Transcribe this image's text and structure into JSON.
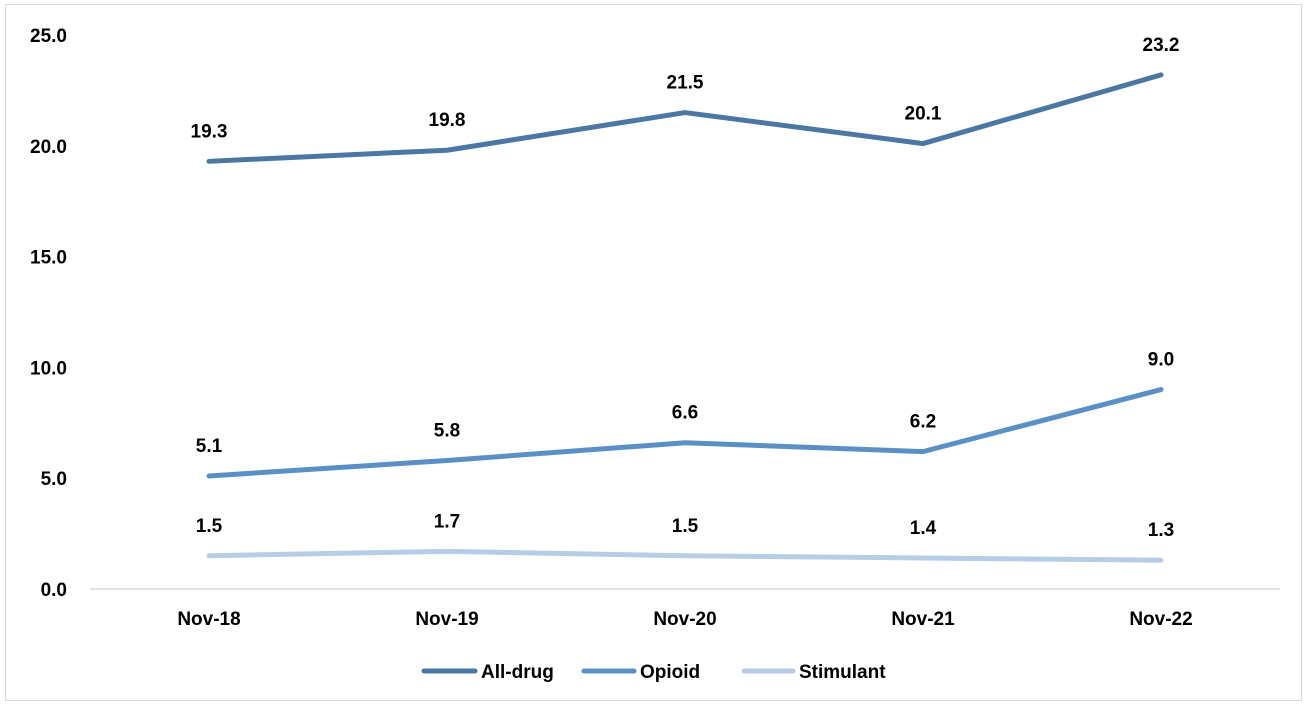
{
  "chart_data": {
    "type": "line",
    "title": "",
    "xlabel": "",
    "ylabel": "",
    "categories": [
      "Nov-18",
      "Nov-19",
      "Nov-20",
      "Nov-21",
      "Nov-22"
    ],
    "ylim": [
      0,
      25
    ],
    "yticks": [
      "0.0",
      "5.0",
      "10.0",
      "15.0",
      "20.0",
      "25.0"
    ],
    "grid": false,
    "legend_position": "bottom",
    "series": [
      {
        "name": "All-drug",
        "color": "#4a77a3",
        "values": [
          19.3,
          19.8,
          21.5,
          20.1,
          23.2
        ],
        "labels": [
          "19.3",
          "19.8",
          "21.5",
          "20.1",
          "23.2"
        ]
      },
      {
        "name": "Opioid",
        "color": "#5a90c6",
        "values": [
          5.1,
          5.8,
          6.6,
          6.2,
          9.0
        ],
        "labels": [
          "5.1",
          "5.8",
          "6.6",
          "6.2",
          "9.0"
        ]
      },
      {
        "name": "Stimulant",
        "color": "#b7cce6",
        "values": [
          1.5,
          1.7,
          1.5,
          1.4,
          1.3
        ],
        "labels": [
          "1.5",
          "1.7",
          "1.5",
          "1.4",
          "1.3"
        ]
      }
    ]
  }
}
